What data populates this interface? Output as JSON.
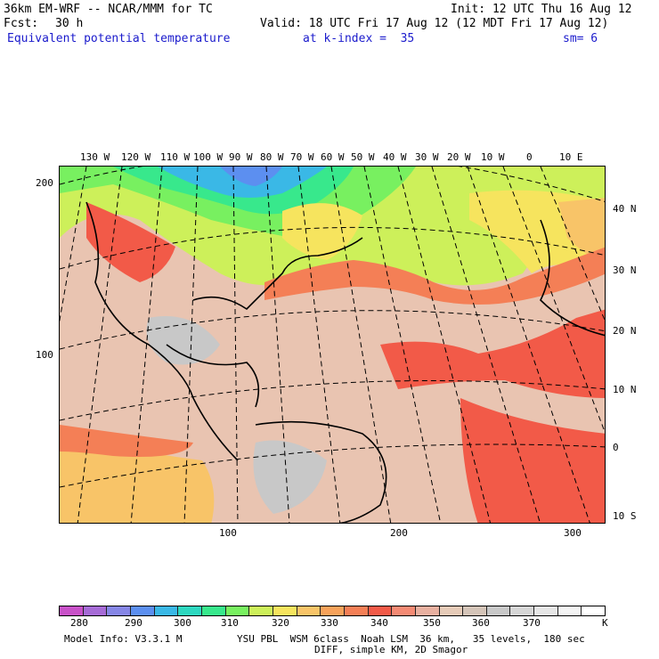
{
  "header": {
    "model": "36km EM-WRF -- NCAR/MMM for TC",
    "init": "Init: 12 UTC Thu 16 Aug 12",
    "fcst_label": "Fcst:",
    "fcst_value": "30 h",
    "valid": "Valid: 18 UTC Fri 17 Aug 12 (12 MDT Fri 17 Aug 12)",
    "field": "Equivalent potential temperature",
    "level": "at k-index =  35",
    "smooth": "sm= 6"
  },
  "map": {
    "lon_labels": [
      "130 W",
      "120 W",
      "110 W",
      "100 W",
      "90 W",
      "80 W",
      "70 W",
      "60 W",
      "50 W",
      "40 W",
      "30 W",
      "20 W",
      "10 W",
      "0",
      "10 E"
    ],
    "lat_labels": [
      "40 N",
      "30 N",
      "20 N",
      "10 N",
      "0",
      "10 S"
    ],
    "y_grid_labels": [
      "200",
      "100"
    ],
    "x_grid_labels": [
      "100",
      "200",
      "300"
    ]
  },
  "colorbar": {
    "colors": [
      "#c851c8",
      "#a66bd6",
      "#8686e6",
      "#5c8ff0",
      "#3ab8e6",
      "#2ed8c0",
      "#38e88c",
      "#78f060",
      "#cdf05a",
      "#f6e45e",
      "#f8c468",
      "#f7a25a",
      "#f47f56",
      "#f25a48",
      "#f48a74",
      "#e8b0a0",
      "#e6cbb8",
      "#d4c4b8",
      "#c8c8c8",
      "#d6d6d6",
      "#e6e6e6",
      "#f4f4f4",
      "#ffffff"
    ],
    "labels": [
      "280",
      "290",
      "300",
      "310",
      "320",
      "330",
      "340",
      "350",
      "360",
      "370"
    ],
    "unit": "K"
  },
  "footer": {
    "line1_left": "Model Info: V3.3.1 M",
    "line1_right": "YSU PBL  WSM 6class  Noah LSM  36 km,   35 levels,  180 sec",
    "line2": "DIFF, simple KM, 2D Smagor"
  }
}
